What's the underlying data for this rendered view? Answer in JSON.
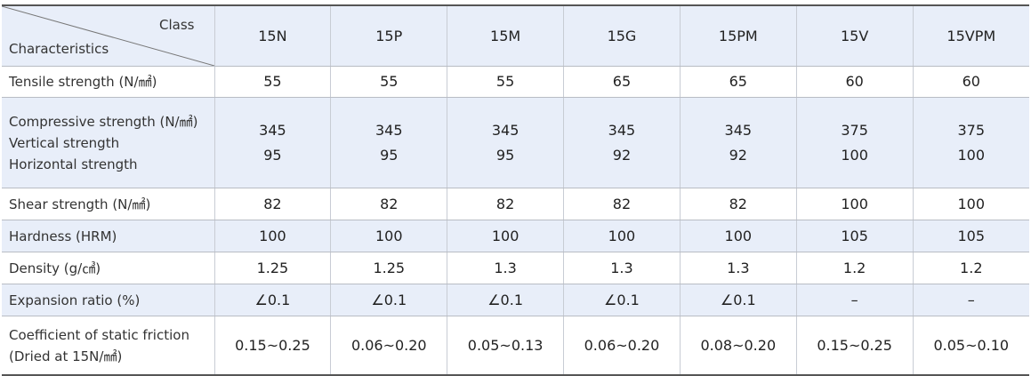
{
  "header": {
    "class_label": "Class",
    "characteristics_label": "Characteristics",
    "classes": [
      "15N",
      "15P",
      "15M",
      "15G",
      "15PM",
      "15V",
      "15VPM"
    ]
  },
  "rows": [
    {
      "label": [
        "Tensile strength (N/㎟)"
      ],
      "values": [
        [
          "55"
        ],
        [
          "55"
        ],
        [
          "55"
        ],
        [
          "65"
        ],
        [
          "65"
        ],
        [
          "60"
        ],
        [
          "60"
        ]
      ]
    },
    {
      "label": [
        "Compressive strength (N/㎟)",
        "Vertical strength",
        "Horizontal strength"
      ],
      "values": [
        [
          "345",
          "95"
        ],
        [
          "345",
          "95"
        ],
        [
          "345",
          "95"
        ],
        [
          "345",
          "92"
        ],
        [
          "345",
          "92"
        ],
        [
          "375",
          "100"
        ],
        [
          "375",
          "100"
        ]
      ]
    },
    {
      "label": [
        "Shear strength (N/㎟)"
      ],
      "values": [
        [
          "82"
        ],
        [
          "82"
        ],
        [
          "82"
        ],
        [
          "82"
        ],
        [
          "82"
        ],
        [
          "100"
        ],
        [
          "100"
        ]
      ]
    },
    {
      "label": [
        "Hardness (HRM)"
      ],
      "values": [
        [
          "100"
        ],
        [
          "100"
        ],
        [
          "100"
        ],
        [
          "100"
        ],
        [
          "100"
        ],
        [
          "105"
        ],
        [
          "105"
        ]
      ]
    },
    {
      "label": [
        "Density (g/㎤)"
      ],
      "values": [
        [
          "1.25"
        ],
        [
          "1.25"
        ],
        [
          "1.3"
        ],
        [
          "1.3"
        ],
        [
          "1.3"
        ],
        [
          "1.2"
        ],
        [
          "1.2"
        ]
      ]
    },
    {
      "label": [
        "Expansion ratio (%)"
      ],
      "values": [
        [
          "∠0.1"
        ],
        [
          "∠0.1"
        ],
        [
          "∠0.1"
        ],
        [
          "∠0.1"
        ],
        [
          "∠0.1"
        ],
        [
          "–"
        ],
        [
          "–"
        ]
      ]
    },
    {
      "label": [
        "Coefficient of static friction",
        "(Dried at 15N/㎟)"
      ],
      "values": [
        [
          "0.15~0.25"
        ],
        [
          "0.06~0.20"
        ],
        [
          "0.05~0.13"
        ],
        [
          "0.06~0.20"
        ],
        [
          "0.08~0.20"
        ],
        [
          "0.15~0.25"
        ],
        [
          "0.05~0.10"
        ]
      ]
    }
  ]
}
